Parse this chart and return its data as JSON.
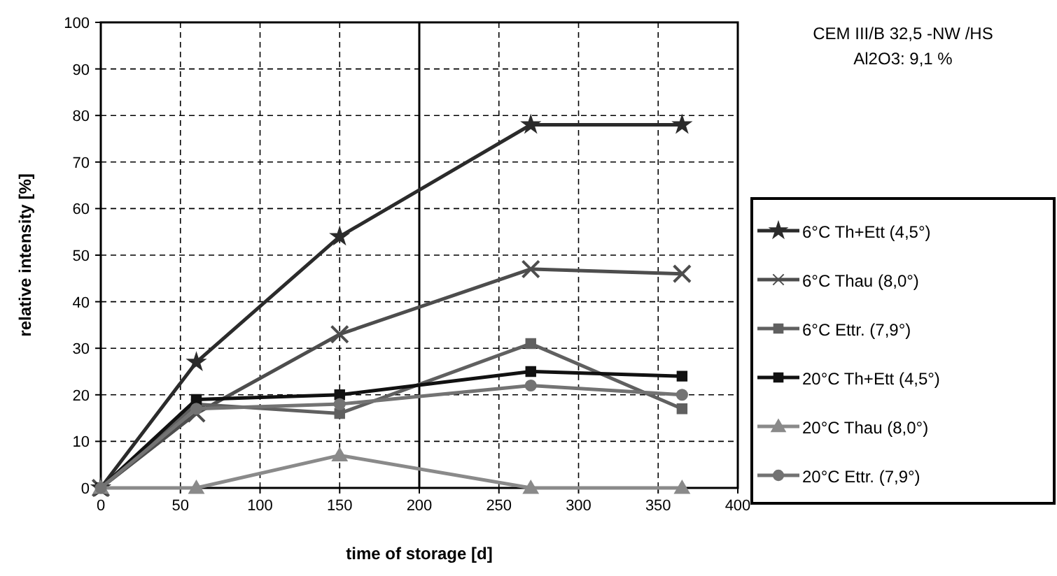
{
  "chart_data": {
    "type": "line",
    "xlabel": "time of storage [d]",
    "ylabel": "relative intensity [%]",
    "annotations": [
      "CEM III/B 32,5 -NW /HS",
      "Al2O3: 9,1 %"
    ],
    "x": [
      0,
      60,
      150,
      270,
      365
    ],
    "series": [
      {
        "name": "6°C Th+Ett (4,5°)",
        "color": "#2b2b2b",
        "marker": "star",
        "values": [
          0,
          27,
          54,
          78,
          78
        ]
      },
      {
        "name": "6°C Thau  (8,0°)",
        "color": "#4d4d4d",
        "marker": "cross",
        "values": [
          0,
          16,
          33,
          47,
          46
        ]
      },
      {
        "name": "6°C Ettr. (7,9°)",
        "color": "#606060",
        "marker": "square",
        "values": [
          0,
          18,
          16,
          31,
          17
        ]
      },
      {
        "name": "20°C Th+Ett (4,5°)",
        "color": "#111111",
        "marker": "square",
        "values": [
          0,
          19,
          20,
          25,
          24
        ]
      },
      {
        "name": "20°C Thau  (8,0°)",
        "color": "#8a8a8a",
        "marker": "triangle",
        "values": [
          0,
          0,
          7,
          0,
          0
        ]
      },
      {
        "name": "20°C Ettr. (7,9°)",
        "color": "#737373",
        "marker": "circle",
        "values": [
          0,
          17,
          18,
          22,
          20
        ]
      }
    ],
    "xlim": [
      0,
      400
    ],
    "xticks": [
      0,
      50,
      100,
      150,
      200,
      250,
      300,
      350,
      400
    ],
    "ylim": [
      0,
      100
    ],
    "yticks": [
      0,
      10,
      20,
      30,
      40,
      50,
      60,
      70,
      80,
      90,
      100
    ],
    "ref_lines": [
      {
        "axis": "x",
        "value": 200,
        "color": "#000000",
        "line_style": "solid"
      }
    ],
    "grid": true,
    "legend": "right",
    "line_style": "solid"
  }
}
